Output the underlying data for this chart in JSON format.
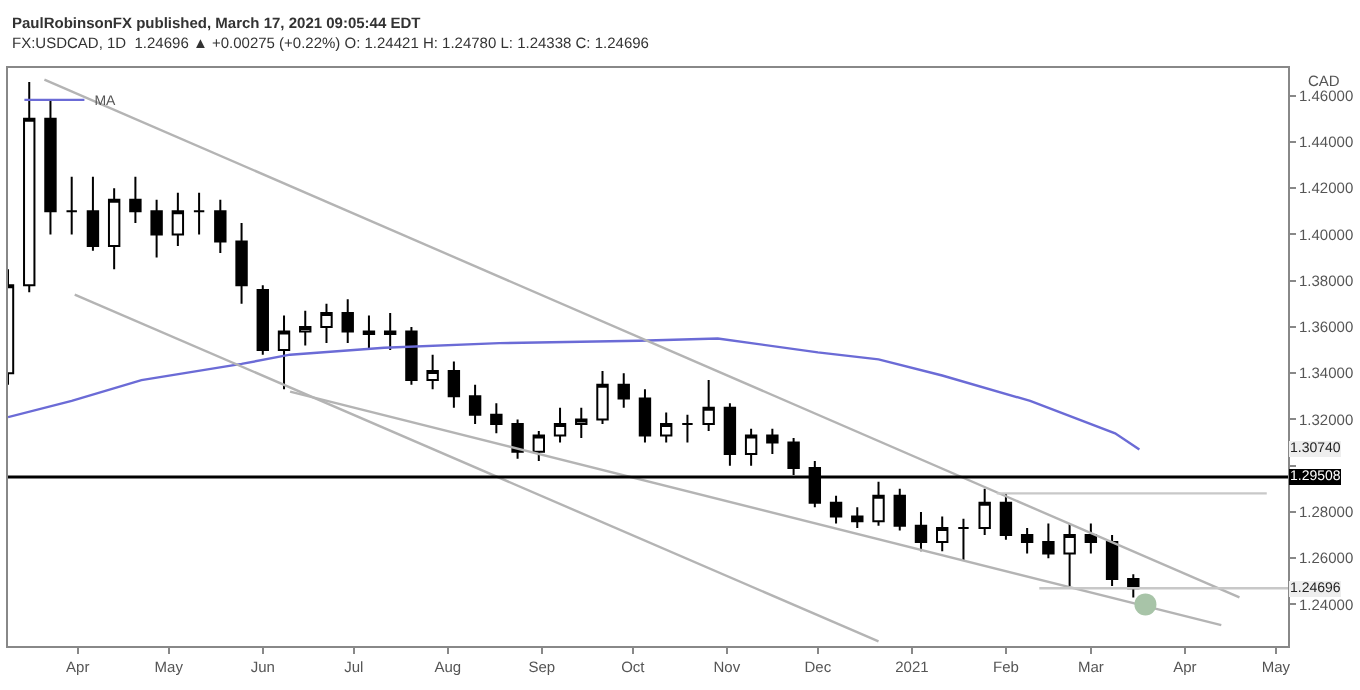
{
  "chart_data": {
    "type": "candlestick",
    "title": "PaulRobinsonFX published, March 17, 2021 09:05:44 EDT",
    "subtitle": "FX:USDCAD, 1D  1.24696 ▲ +0.00275 (+0.22%) O: 1.24421 H: 1.24780 L: 1.24338 C: 1.24696",
    "ylabel": "CAD",
    "color": "#000000",
    "x": [
      "2020-03-09",
      "2020-03-16",
      "2020-03-23",
      "2020-03-30",
      "2020-04-06",
      "2020-04-13",
      "2020-04-20",
      "2020-04-27",
      "2020-05-04",
      "2020-05-11",
      "2020-05-18",
      "2020-05-25",
      "2020-06-01",
      "2020-06-08",
      "2020-06-15",
      "2020-06-22",
      "2020-06-29",
      "2020-07-06",
      "2020-07-13",
      "2020-07-20",
      "2020-07-27",
      "2020-08-03",
      "2020-08-10",
      "2020-08-17",
      "2020-08-24",
      "2020-08-31",
      "2020-09-07",
      "2020-09-14",
      "2020-09-21",
      "2020-09-28",
      "2020-10-05",
      "2020-10-12",
      "2020-10-19",
      "2020-10-26",
      "2020-11-02",
      "2020-11-09",
      "2020-11-16",
      "2020-11-23",
      "2020-11-30",
      "2020-12-07",
      "2020-12-14",
      "2020-12-21",
      "2020-12-28",
      "2021-01-04",
      "2021-01-11",
      "2021-01-18",
      "2021-01-25",
      "2021-02-01",
      "2021-02-08",
      "2021-02-15",
      "2021-02-22",
      "2021-03-01",
      "2021-03-08",
      "2021-03-15"
    ],
    "ohlc": [
      [
        1.34,
        1.385,
        1.335,
        1.378
      ],
      [
        1.378,
        1.466,
        1.375,
        1.45
      ],
      [
        1.45,
        1.458,
        1.4,
        1.41
      ],
      [
        1.41,
        1.425,
        1.4,
        1.41
      ],
      [
        1.41,
        1.425,
        1.393,
        1.395
      ],
      [
        1.395,
        1.42,
        1.385,
        1.415
      ],
      [
        1.415,
        1.425,
        1.405,
        1.41
      ],
      [
        1.41,
        1.415,
        1.39,
        1.4
      ],
      [
        1.4,
        1.418,
        1.395,
        1.41
      ],
      [
        1.41,
        1.418,
        1.4,
        1.41
      ],
      [
        1.41,
        1.415,
        1.392,
        1.397
      ],
      [
        1.397,
        1.405,
        1.37,
        1.378
      ],
      [
        1.376,
        1.378,
        1.348,
        1.35
      ],
      [
        1.35,
        1.365,
        1.333,
        1.358
      ],
      [
        1.358,
        1.367,
        1.352,
        1.36
      ],
      [
        1.36,
        1.37,
        1.353,
        1.366
      ],
      [
        1.366,
        1.372,
        1.353,
        1.358
      ],
      [
        1.358,
        1.365,
        1.35,
        1.357
      ],
      [
        1.357,
        1.366,
        1.35,
        1.358
      ],
      [
        1.358,
        1.36,
        1.335,
        1.337
      ],
      [
        1.337,
        1.348,
        1.333,
        1.341
      ],
      [
        1.341,
        1.345,
        1.325,
        1.33
      ],
      [
        1.33,
        1.335,
        1.318,
        1.322
      ],
      [
        1.322,
        1.327,
        1.314,
        1.318
      ],
      [
        1.318,
        1.32,
        1.303,
        1.306
      ],
      [
        1.306,
        1.315,
        1.302,
        1.313
      ],
      [
        1.313,
        1.325,
        1.31,
        1.318
      ],
      [
        1.318,
        1.325,
        1.312,
        1.32
      ],
      [
        1.32,
        1.341,
        1.318,
        1.335
      ],
      [
        1.335,
        1.34,
        1.325,
        1.329
      ],
      [
        1.329,
        1.333,
        1.31,
        1.313
      ],
      [
        1.313,
        1.323,
        1.31,
        1.318
      ],
      [
        1.318,
        1.322,
        1.31,
        1.318
      ],
      [
        1.318,
        1.337,
        1.315,
        1.325
      ],
      [
        1.325,
        1.327,
        1.3,
        1.305
      ],
      [
        1.305,
        1.316,
        1.3,
        1.313
      ],
      [
        1.313,
        1.316,
        1.305,
        1.31
      ],
      [
        1.31,
        1.312,
        1.296,
        1.299
      ],
      [
        1.299,
        1.302,
        1.282,
        1.284
      ],
      [
        1.284,
        1.287,
        1.275,
        1.278
      ],
      [
        1.278,
        1.282,
        1.273,
        1.276
      ],
      [
        1.276,
        1.293,
        1.274,
        1.287
      ],
      [
        1.287,
        1.29,
        1.272,
        1.274
      ],
      [
        1.274,
        1.28,
        1.263,
        1.267
      ],
      [
        1.267,
        1.278,
        1.263,
        1.273
      ],
      [
        1.273,
        1.277,
        1.259,
        1.273
      ],
      [
        1.273,
        1.29,
        1.27,
        1.284
      ],
      [
        1.284,
        1.288,
        1.268,
        1.27
      ],
      [
        1.27,
        1.273,
        1.262,
        1.267
      ],
      [
        1.267,
        1.275,
        1.26,
        1.262
      ],
      [
        1.262,
        1.275,
        1.248,
        1.27
      ],
      [
        1.27,
        1.275,
        1.262,
        1.267
      ],
      [
        1.267,
        1.27,
        1.248,
        1.251
      ],
      [
        1.251,
        1.253,
        1.243,
        1.247
      ]
    ],
    "series": [
      {
        "type": "line",
        "name": "MA",
        "color": "#6b6bd6",
        "x": [
          "2020-03-09",
          "2020-03-30",
          "2020-04-22",
          "2020-05-25",
          "2020-06-10",
          "2020-07-11",
          "2020-08-18",
          "2020-10-03",
          "2020-10-29",
          "2020-12-01",
          "2020-12-21",
          "2021-01-11",
          "2021-02-09",
          "2021-03-09",
          "2021-03-17"
        ],
        "values": [
          1.321,
          1.328,
          1.337,
          1.344,
          1.348,
          1.351,
          1.353,
          1.354,
          1.355,
          1.349,
          1.346,
          1.339,
          1.328,
          1.314,
          1.307
        ]
      },
      {
        "type": "line",
        "color": "#b4b4b4",
        "x": [
          "2020-03-21",
          "2021-04-19"
        ],
        "values": [
          1.467,
          1.243
        ]
      },
      {
        "type": "line",
        "color": "#b4b4b4",
        "x": [
          "2020-03-31",
          "2020-12-21"
        ],
        "values": [
          1.374,
          1.224
        ]
      },
      {
        "type": "line",
        "color": "#b4b4b4",
        "x": [
          "2020-06-10",
          "2021-04-13"
        ],
        "values": [
          1.332,
          1.231
        ]
      },
      {
        "type": "line",
        "color": "#c8c8c8",
        "x": [
          "2021-01-29",
          "2021-04-28"
        ],
        "values": [
          1.288,
          1.288
        ]
      },
      {
        "type": "line",
        "color": "#c8c8c8",
        "x": [
          "2021-02-12",
          "2021-05-05"
        ],
        "values": [
          1.247,
          1.247
        ]
      },
      {
        "type": "scatter",
        "color": "#a8c4a8",
        "x": [
          "2021-03-19"
        ],
        "values": [
          1.24
        ]
      }
    ],
    "ref_lines": [
      {
        "axis": "y",
        "value": 1.29508,
        "label": "1.29508",
        "color": "#000000"
      }
    ],
    "annotations": [
      {
        "text": "1.30740",
        "y": 1.3074
      },
      {
        "text": "1.24696",
        "y": 1.24696
      }
    ],
    "xlim": [
      "2020-03-09",
      "2021-05-05"
    ],
    "xticks": [
      {
        "value": "2020-04-01",
        "label": "Apr"
      },
      {
        "value": "2020-05-01",
        "label": "May"
      },
      {
        "value": "2020-06-01",
        "label": "Jun"
      },
      {
        "value": "2020-07-01",
        "label": "Jul"
      },
      {
        "value": "2020-08-01",
        "label": "Aug"
      },
      {
        "value": "2020-09-01",
        "label": "Sep"
      },
      {
        "value": "2020-10-01",
        "label": "Oct"
      },
      {
        "value": "2020-11-01",
        "label": "Nov"
      },
      {
        "value": "2020-12-01",
        "label": "Dec"
      },
      {
        "value": "2021-01-01",
        "label": "2021"
      },
      {
        "value": "2021-02-01",
        "label": "Feb"
      },
      {
        "value": "2021-03-01",
        "label": "Mar"
      },
      {
        "value": "2021-04-01",
        "label": "Apr"
      },
      {
        "value": "2021-05-01",
        "label": "May"
      }
    ],
    "ylim": [
      1.222,
      1.472
    ],
    "yticks": [
      {
        "value": 1.24,
        "label": "1.24000"
      },
      {
        "value": 1.26,
        "label": "1.26000"
      },
      {
        "value": 1.28,
        "label": "1.28000"
      },
      {
        "value": 1.3,
        "label": null
      },
      {
        "value": 1.32,
        "label": "1.32000"
      },
      {
        "value": 1.34,
        "label": "1.34000"
      },
      {
        "value": 1.36,
        "label": "1.36000"
      },
      {
        "value": 1.38,
        "label": "1.38000"
      },
      {
        "value": 1.4,
        "label": "1.40000"
      },
      {
        "value": 1.42,
        "label": "1.42000"
      },
      {
        "value": 1.44,
        "label": "1.44000"
      },
      {
        "value": 1.46,
        "label": "1.46000"
      }
    ],
    "legend": "top left"
  }
}
